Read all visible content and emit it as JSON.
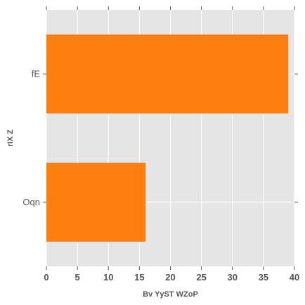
{
  "chart_data": {
    "type": "bar",
    "orientation": "horizontal",
    "categories": [
      "Oqn",
      "fE"
    ],
    "values": [
      16,
      39
    ],
    "xlabel": "Bv YyST WZoP",
    "ylabel": "rIX Z",
    "xlim": [
      0,
      40
    ],
    "xticks": [
      0,
      5,
      10,
      15,
      20,
      25,
      30,
      35,
      40
    ],
    "grid": true,
    "bar_color": "#ff7f0e",
    "background_color": "#e5e5e5",
    "grid_color": "#ffffff"
  }
}
